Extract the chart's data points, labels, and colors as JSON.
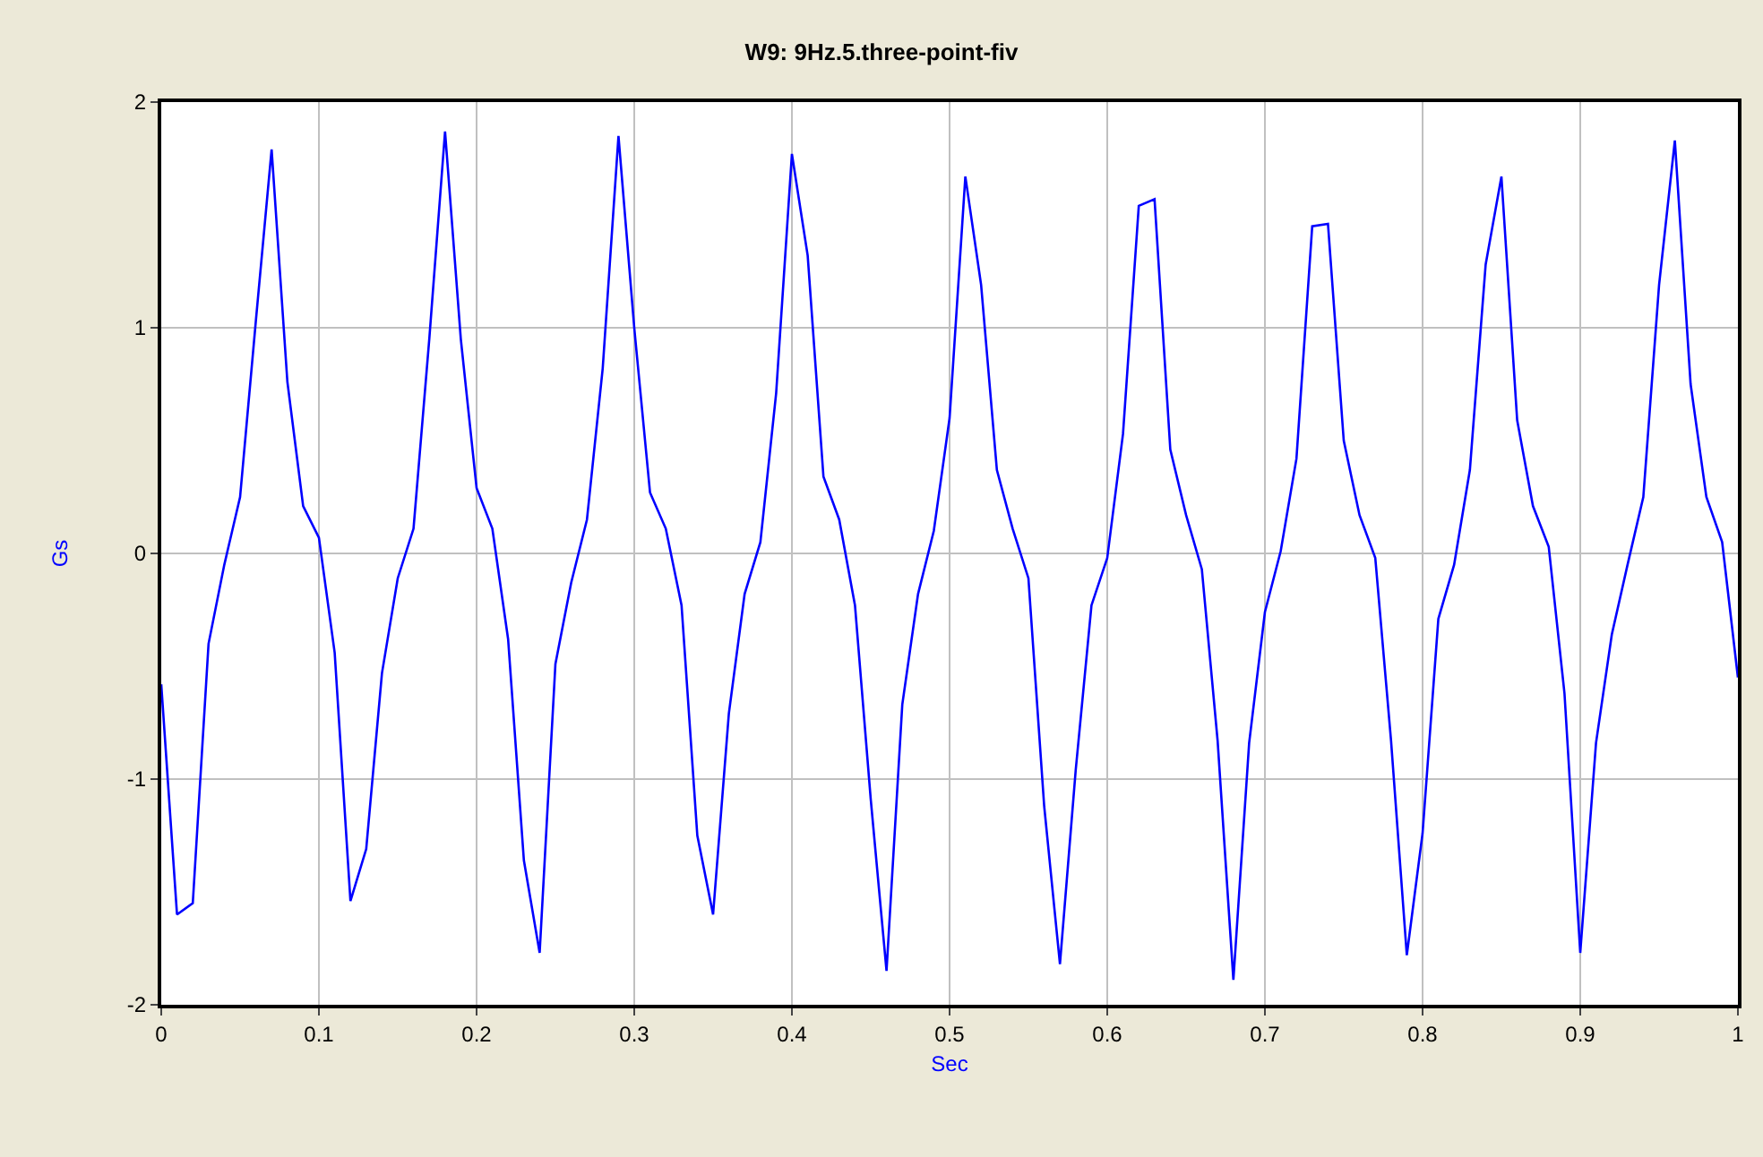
{
  "chart_data": {
    "type": "line",
    "title": "W9: 9Hz.5.three-point-fiv",
    "xlabel": "Sec",
    "ylabel": "Gs",
    "x": [
      0,
      0.01,
      0.02,
      0.03,
      0.04,
      0.05,
      0.06,
      0.07,
      0.08,
      0.09,
      0.1,
      0.11,
      0.12,
      0.13,
      0.14,
      0.15,
      0.16,
      0.17,
      0.18,
      0.19,
      0.2,
      0.21,
      0.22,
      0.23,
      0.24,
      0.25,
      0.26,
      0.27,
      0.28,
      0.29,
      0.3,
      0.31,
      0.32,
      0.33,
      0.34,
      0.35,
      0.36,
      0.37,
      0.38,
      0.39,
      0.4,
      0.41,
      0.42,
      0.43,
      0.44,
      0.45,
      0.46,
      0.47,
      0.48,
      0.49,
      0.5,
      0.51,
      0.52,
      0.53,
      0.54,
      0.55,
      0.56,
      0.57,
      0.58,
      0.59,
      0.6,
      0.61,
      0.62,
      0.63,
      0.64,
      0.65,
      0.66,
      0.67,
      0.68,
      0.69,
      0.7,
      0.71,
      0.72,
      0.73,
      0.74,
      0.75,
      0.76,
      0.77,
      0.78,
      0.79,
      0.8,
      0.81,
      0.82,
      0.83,
      0.84,
      0.85,
      0.86,
      0.87,
      0.88,
      0.89,
      0.9,
      0.91,
      0.92,
      0.93,
      0.94,
      0.95,
      0.96,
      0.97,
      0.98,
      0.99,
      1
    ],
    "series": [
      {
        "color": "#0000ff",
        "values": [
          -0.58,
          -1.6,
          -1.55,
          -0.4,
          -0.05,
          0.25,
          1.03,
          1.79,
          0.76,
          0.21,
          0.07,
          -0.44,
          -1.54,
          -1.31,
          -0.53,
          -0.11,
          0.11,
          0.95,
          1.87,
          0.95,
          0.29,
          0.11,
          -0.38,
          -1.36,
          -1.77,
          -0.49,
          -0.13,
          0.15,
          0.82,
          1.85,
          1.0,
          0.27,
          0.11,
          -0.23,
          -1.25,
          -1.6,
          -0.71,
          -0.18,
          0.05,
          0.71,
          1.77,
          1.32,
          0.34,
          0.15,
          -0.23,
          -1.09,
          -1.85,
          -0.67,
          -0.18,
          0.1,
          0.6,
          1.67,
          1.19,
          0.37,
          0.11,
          -0.11,
          -1.12,
          -1.82,
          -0.96,
          -0.23,
          -0.02,
          0.53,
          1.54,
          1.57,
          0.46,
          0.17,
          -0.07,
          -0.83,
          -1.89,
          -0.84,
          -0.26,
          0.01,
          0.42,
          1.45,
          1.46,
          0.5,
          0.17,
          -0.02,
          -0.83,
          -1.78,
          -1.24,
          -0.29,
          -0.05,
          0.37,
          1.28,
          1.67,
          0.59,
          0.21,
          0.03,
          -0.62,
          -1.77,
          -0.84,
          -0.36,
          -0.05,
          0.25,
          1.19,
          1.83,
          0.75,
          0.25,
          0.05,
          -0.55
        ]
      }
    ],
    "xlim": [
      0,
      1
    ],
    "xticks": [
      0,
      0.1,
      0.2,
      0.3,
      0.4,
      0.5,
      0.6,
      0.7,
      0.8,
      0.9,
      1
    ],
    "ylim": [
      -2,
      2
    ],
    "yticks": [
      -2,
      -1,
      0,
      1,
      2
    ],
    "grid": true,
    "marker": "none",
    "line_style": "solid"
  }
}
